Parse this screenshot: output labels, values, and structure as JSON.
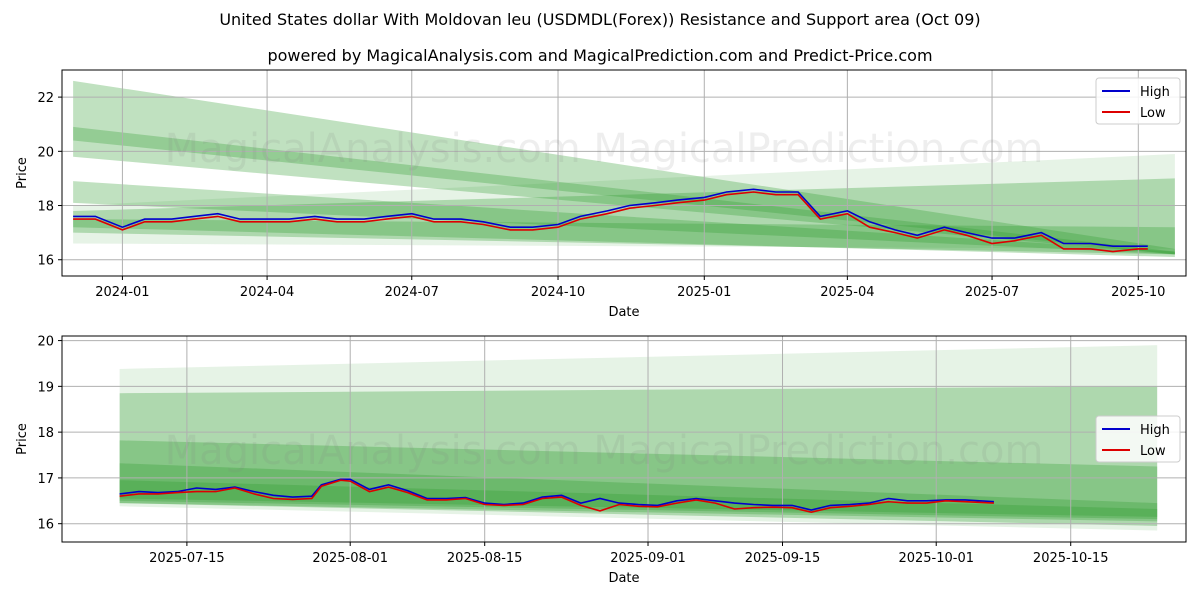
{
  "title": "United States dollar With Moldovan leu (USDMDL(Forex)) Resistance and Support area (Oct 09)",
  "subtitle": "powered by MagicalAnalysis.com and MagicalPrediction.com and Predict-Price.com",
  "watermark": "MagicalAnalysis.com   MagicalPrediction.com",
  "colors": {
    "high": "#0000cc",
    "low": "#dd0000",
    "band": "#2e9a2e"
  },
  "chart_data": [
    {
      "type": "line",
      "xlabel": "Date",
      "ylabel": "Price",
      "xlim": [
        "2023-11-24",
        "2025-10-31"
      ],
      "ylim": [
        15.4,
        23.0
      ],
      "xticks": [
        "2024-01",
        "2024-04",
        "2024-07",
        "2024-10",
        "2025-01",
        "2025-04",
        "2025-07",
        "2025-10"
      ],
      "xtick_values": [
        "2024-01-01",
        "2024-04-01",
        "2024-07-01",
        "2024-10-01",
        "2025-01-01",
        "2025-04-01",
        "2025-07-01",
        "2025-10-01"
      ],
      "yticks": [
        16,
        18,
        20,
        22
      ],
      "grid": true,
      "legend": "top-right",
      "series": [
        {
          "name": "High",
          "color": "#0000cc",
          "x": [
            "2023-12-01",
            "2023-12-15",
            "2024-01-01",
            "2024-01-15",
            "2024-02-01",
            "2024-02-15",
            "2024-03-01",
            "2024-03-15",
            "2024-04-01",
            "2024-04-15",
            "2024-05-01",
            "2024-05-15",
            "2024-06-01",
            "2024-06-15",
            "2024-07-01",
            "2024-07-15",
            "2024-08-01",
            "2024-08-15",
            "2024-09-01",
            "2024-09-15",
            "2024-10-01",
            "2024-10-15",
            "2024-11-01",
            "2024-11-15",
            "2024-12-01",
            "2024-12-15",
            "2025-01-01",
            "2025-01-15",
            "2025-02-01",
            "2025-02-15",
            "2025-03-01",
            "2025-03-15",
            "2025-04-01",
            "2025-04-15",
            "2025-05-01",
            "2025-05-15",
            "2025-06-01",
            "2025-06-15",
            "2025-07-01",
            "2025-07-15",
            "2025-08-01",
            "2025-08-15",
            "2025-09-01",
            "2025-09-15",
            "2025-10-01",
            "2025-10-07"
          ],
          "values": [
            17.6,
            17.6,
            17.2,
            17.5,
            17.5,
            17.6,
            17.7,
            17.5,
            17.5,
            17.5,
            17.6,
            17.5,
            17.5,
            17.6,
            17.7,
            17.5,
            17.5,
            17.4,
            17.2,
            17.2,
            17.3,
            17.6,
            17.8,
            18.0,
            18.1,
            18.2,
            18.3,
            18.5,
            18.6,
            18.5,
            18.5,
            17.6,
            17.8,
            17.4,
            17.1,
            16.9,
            17.2,
            17.0,
            16.8,
            16.8,
            17.0,
            16.6,
            16.6,
            16.5,
            16.5,
            16.5
          ]
        },
        {
          "name": "Low",
          "color": "#dd0000",
          "x": [
            "2023-12-01",
            "2023-12-15",
            "2024-01-01",
            "2024-01-15",
            "2024-02-01",
            "2024-02-15",
            "2024-03-01",
            "2024-03-15",
            "2024-04-01",
            "2024-04-15",
            "2024-05-01",
            "2024-05-15",
            "2024-06-01",
            "2024-06-15",
            "2024-07-01",
            "2024-07-15",
            "2024-08-01",
            "2024-08-15",
            "2024-09-01",
            "2024-09-15",
            "2024-10-01",
            "2024-10-15",
            "2024-11-01",
            "2024-11-15",
            "2024-12-01",
            "2024-12-15",
            "2025-01-01",
            "2025-01-15",
            "2025-02-01",
            "2025-02-15",
            "2025-03-01",
            "2025-03-15",
            "2025-04-01",
            "2025-04-15",
            "2025-05-01",
            "2025-05-15",
            "2025-06-01",
            "2025-06-15",
            "2025-07-01",
            "2025-07-15",
            "2025-08-01",
            "2025-08-15",
            "2025-09-01",
            "2025-09-15",
            "2025-10-01",
            "2025-10-07"
          ],
          "values": [
            17.5,
            17.5,
            17.1,
            17.4,
            17.4,
            17.5,
            17.6,
            17.4,
            17.4,
            17.4,
            17.5,
            17.4,
            17.4,
            17.5,
            17.6,
            17.4,
            17.4,
            17.3,
            17.1,
            17.1,
            17.2,
            17.5,
            17.7,
            17.9,
            18.0,
            18.1,
            18.2,
            18.4,
            18.5,
            18.4,
            18.4,
            17.5,
            17.7,
            17.2,
            17.0,
            16.8,
            17.1,
            16.9,
            16.6,
            16.7,
            16.9,
            16.4,
            16.4,
            16.3,
            16.4,
            16.4
          ]
        }
      ],
      "bands": [
        {
          "x": [
            "2023-12-01",
            "2025-10-24"
          ],
          "upper": [
            22.6,
            16.4
          ],
          "lower": [
            20.4,
            16.2
          ],
          "opacity": 0.3
        },
        {
          "x": [
            "2023-12-01",
            "2025-10-24"
          ],
          "upper": [
            20.9,
            16.3
          ],
          "lower": [
            19.8,
            16.2
          ],
          "opacity": 0.3
        },
        {
          "x": [
            "2023-12-01",
            "2025-10-24"
          ],
          "upper": [
            18.9,
            16.3
          ],
          "lower": [
            18.1,
            16.2
          ],
          "opacity": 0.3
        },
        {
          "x": [
            "2023-12-01",
            "2025-10-24"
          ],
          "upper": [
            18.0,
            19.9
          ],
          "lower": [
            16.6,
            16.4
          ],
          "opacity": 0.12
        },
        {
          "x": [
            "2023-12-01",
            "2025-10-24"
          ],
          "upper": [
            17.8,
            19.0
          ],
          "lower": [
            17.0,
            16.2
          ],
          "opacity": 0.3
        },
        {
          "x": [
            "2023-12-01",
            "2025-10-24"
          ],
          "upper": [
            17.5,
            17.2
          ],
          "lower": [
            17.2,
            16.1
          ],
          "opacity": 0.3
        }
      ]
    },
    {
      "type": "line",
      "xlabel": "Date",
      "ylabel": "Price",
      "xlim": [
        "2025-07-02",
        "2025-10-27"
      ],
      "ylim": [
        15.6,
        20.1
      ],
      "xticks": [
        "2025-07-15",
        "2025-08-01",
        "2025-08-15",
        "2025-09-01",
        "2025-09-15",
        "2025-10-01",
        "2025-10-15"
      ],
      "xtick_values": [
        "2025-07-15",
        "2025-08-01",
        "2025-08-15",
        "2025-09-01",
        "2025-09-15",
        "2025-10-01",
        "2025-10-15"
      ],
      "yticks": [
        16,
        17,
        18,
        19,
        20
      ],
      "grid": true,
      "legend": "center-right",
      "series": [
        {
          "name": "High",
          "color": "#0000cc",
          "x": [
            "2025-07-08",
            "2025-07-10",
            "2025-07-12",
            "2025-07-14",
            "2025-07-16",
            "2025-07-18",
            "2025-07-20",
            "2025-07-22",
            "2025-07-24",
            "2025-07-26",
            "2025-07-28",
            "2025-07-29",
            "2025-07-31",
            "2025-08-01",
            "2025-08-03",
            "2025-08-05",
            "2025-08-07",
            "2025-08-09",
            "2025-08-11",
            "2025-08-13",
            "2025-08-15",
            "2025-08-17",
            "2025-08-19",
            "2025-08-21",
            "2025-08-23",
            "2025-08-25",
            "2025-08-27",
            "2025-08-29",
            "2025-08-31",
            "2025-09-02",
            "2025-09-04",
            "2025-09-06",
            "2025-09-08",
            "2025-09-10",
            "2025-09-12",
            "2025-09-14",
            "2025-09-16",
            "2025-09-18",
            "2025-09-20",
            "2025-09-22",
            "2025-09-24",
            "2025-09-26",
            "2025-09-28",
            "2025-09-30",
            "2025-10-02",
            "2025-10-04",
            "2025-10-07"
          ],
          "values": [
            16.65,
            16.7,
            16.68,
            16.7,
            16.78,
            16.75,
            16.8,
            16.7,
            16.62,
            16.58,
            16.6,
            16.85,
            16.97,
            16.97,
            16.75,
            16.85,
            16.72,
            16.55,
            16.55,
            16.57,
            16.45,
            16.42,
            16.45,
            16.58,
            16.62,
            16.45,
            16.55,
            16.45,
            16.42,
            16.4,
            16.5,
            16.55,
            16.5,
            16.45,
            16.42,
            16.4,
            16.4,
            16.3,
            16.4,
            16.42,
            16.45,
            16.55,
            16.5,
            16.5,
            16.52,
            16.52,
            16.48
          ]
        },
        {
          "name": "Low",
          "color": "#dd0000",
          "x": [
            "2025-07-08",
            "2025-07-10",
            "2025-07-12",
            "2025-07-14",
            "2025-07-16",
            "2025-07-18",
            "2025-07-20",
            "2025-07-22",
            "2025-07-24",
            "2025-07-26",
            "2025-07-28",
            "2025-07-29",
            "2025-07-31",
            "2025-08-01",
            "2025-08-03",
            "2025-08-05",
            "2025-08-07",
            "2025-08-09",
            "2025-08-11",
            "2025-08-13",
            "2025-08-15",
            "2025-08-17",
            "2025-08-19",
            "2025-08-21",
            "2025-08-23",
            "2025-08-25",
            "2025-08-27",
            "2025-08-29",
            "2025-08-31",
            "2025-09-02",
            "2025-09-04",
            "2025-09-06",
            "2025-09-08",
            "2025-09-10",
            "2025-09-12",
            "2025-09-14",
            "2025-09-16",
            "2025-09-18",
            "2025-09-20",
            "2025-09-22",
            "2025-09-24",
            "2025-09-26",
            "2025-09-28",
            "2025-09-30",
            "2025-10-02",
            "2025-10-04",
            "2025-10-07"
          ],
          "values": [
            16.6,
            16.65,
            16.65,
            16.68,
            16.7,
            16.7,
            16.78,
            16.65,
            16.55,
            16.53,
            16.55,
            16.82,
            16.95,
            16.93,
            16.7,
            16.8,
            16.68,
            16.52,
            16.52,
            16.55,
            16.42,
            16.4,
            16.42,
            16.55,
            16.58,
            16.4,
            16.28,
            16.42,
            16.38,
            16.37,
            16.45,
            16.52,
            16.45,
            16.32,
            16.35,
            16.36,
            16.35,
            16.25,
            16.35,
            16.38,
            16.42,
            16.48,
            16.45,
            16.45,
            16.5,
            16.48,
            16.45
          ]
        }
      ],
      "bands": [
        {
          "x": [
            "2025-07-08",
            "2025-10-24"
          ],
          "upper": [
            19.38,
            19.9
          ],
          "lower": [
            16.38,
            15.85
          ],
          "opacity": 0.12
        },
        {
          "x": [
            "2025-07-08",
            "2025-10-24"
          ],
          "upper": [
            18.85,
            19.0
          ],
          "lower": [
            16.45,
            15.95
          ],
          "opacity": 0.3
        },
        {
          "x": [
            "2025-07-08",
            "2025-10-24"
          ],
          "upper": [
            17.82,
            17.25
          ],
          "lower": [
            16.45,
            16.05
          ],
          "opacity": 0.3
        },
        {
          "x": [
            "2025-07-08",
            "2025-10-24"
          ],
          "upper": [
            17.32,
            16.45
          ],
          "lower": [
            16.5,
            16.1
          ],
          "opacity": 0.3
        },
        {
          "x": [
            "2025-07-08",
            "2025-10-24"
          ],
          "upper": [
            16.95,
            16.32
          ],
          "lower": [
            16.55,
            16.15
          ],
          "opacity": 0.3
        }
      ]
    }
  ],
  "legend": {
    "high_label": "High",
    "low_label": "Low"
  }
}
